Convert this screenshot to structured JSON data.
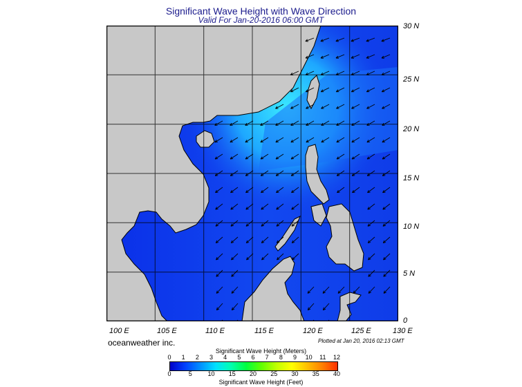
{
  "header": {
    "title": "Significant Wave Height with Wave Direction",
    "subtitle": "Valid For Jan-20-2016 06:00 GMT"
  },
  "map": {
    "land_color": "#c8c8c8",
    "sea_low_color": "#0a2fe8",
    "sea_high_color": "#22d8ff",
    "lat_labels": [
      "30 N",
      "25 N",
      "20 N",
      "15 N",
      "10 N",
      "5 N",
      "0"
    ],
    "lon_labels": [
      "100 E",
      "105 E",
      "110 E",
      "115 E",
      "120 E",
      "125 E",
      "130 E"
    ],
    "extent": {
      "lon_min": 100,
      "lon_max": 130,
      "lat_min": 0,
      "lat_max": 30
    }
  },
  "footer": {
    "brand": "oceanweather inc.",
    "plotted": "Plotted at Jan 20, 2016 02:13 GMT"
  },
  "colorbar": {
    "meters_title": "Significant Wave Height (Meters)",
    "feet_title": "Significant Wave Height (Feet)",
    "meters_ticks": [
      "0",
      "1",
      "2",
      "3",
      "4",
      "5",
      "6",
      "7",
      "8",
      "9",
      "10",
      "11",
      "12"
    ],
    "feet_ticks": [
      "0",
      "5",
      "10",
      "15",
      "20",
      "25",
      "30",
      "35",
      "40"
    ],
    "colors": [
      "#0000c8",
      "#0040ff",
      "#0090ff",
      "#00e0ff",
      "#00ffb0",
      "#00ff40",
      "#60ff00",
      "#c0ff00",
      "#ffff00",
      "#ffc000",
      "#ff8000",
      "#ff3000"
    ]
  }
}
